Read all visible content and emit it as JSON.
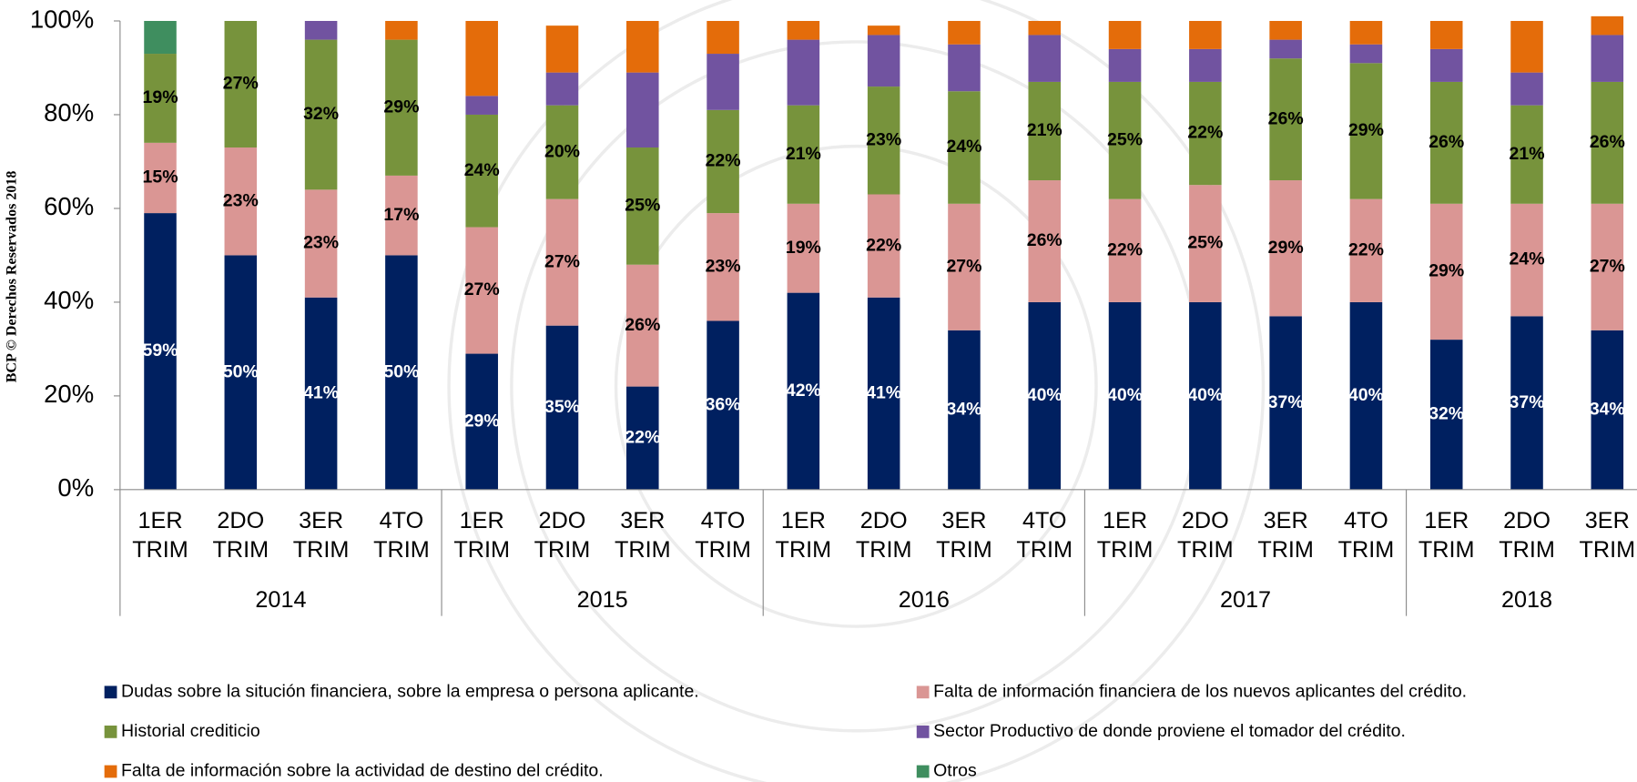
{
  "chart_data": {
    "type": "stacked_bar",
    "side_note": "BCP © Derechos Reservados 2018",
    "groups": [
      {
        "name": "2014",
        "categories": [
          [
            "1ER",
            "TRIM"
          ],
          [
            "2DO",
            "TRIM"
          ],
          [
            "3ER",
            "TRIM"
          ],
          [
            "4TO",
            "TRIM"
          ]
        ]
      },
      {
        "name": "2015",
        "categories": [
          [
            "1ER",
            "TRIM"
          ],
          [
            "2DO",
            "TRIM"
          ],
          [
            "3ER",
            "TRIM"
          ],
          [
            "4TO",
            "TRIM"
          ]
        ]
      },
      {
        "name": "2016",
        "categories": [
          [
            "1ER",
            "TRIM"
          ],
          [
            "2DO",
            "TRIM"
          ],
          [
            "3ER",
            "TRIM"
          ],
          [
            "4TO",
            "TRIM"
          ]
        ]
      },
      {
        "name": "2017",
        "categories": [
          [
            "1ER",
            "TRIM"
          ],
          [
            "2DO",
            "TRIM"
          ],
          [
            "3ER",
            "TRIM"
          ],
          [
            "4TO",
            "TRIM"
          ]
        ]
      },
      {
        "name": "2018",
        "categories": [
          [
            "1ER",
            "TRIM"
          ],
          [
            "2DO",
            "TRIM"
          ],
          [
            "3ER",
            "TRIM"
          ]
        ]
      }
    ],
    "series": [
      {
        "name": "Dudas sobre la situción financiera, sobre la empresa o persona aplicante.",
        "color": "#002060",
        "values": [
          59,
          50,
          41,
          50,
          29,
          35,
          22,
          36,
          42,
          41,
          34,
          40,
          40,
          40,
          37,
          40,
          32,
          37,
          34
        ],
        "value_labels": [
          "59%",
          "50%",
          "41%",
          "50%",
          "29%",
          "35%",
          "22%",
          "36%",
          "42%",
          "41%",
          "34%",
          "40%",
          "40%",
          "40%",
          "37%",
          "40%",
          "32%",
          "37%",
          "34%"
        ]
      },
      {
        "name": "Falta de información financiera de los nuevos aplicantes del crédito.",
        "color": "#da9694",
        "values": [
          15,
          23,
          23,
          17,
          27,
          27,
          26,
          23,
          19,
          22,
          27,
          26,
          22,
          25,
          29,
          22,
          29,
          24,
          27
        ],
        "value_labels": [
          "15%",
          "23%",
          "23%",
          "17%",
          "27%",
          "27%",
          "26%",
          "23%",
          "19%",
          "22%",
          "27%",
          "26%",
          "22%",
          "25%",
          "29%",
          "22%",
          "29%",
          "24%",
          "27%"
        ]
      },
      {
        "name": "Historial crediticio",
        "color": "#77933c",
        "values": [
          19,
          27,
          32,
          29,
          24,
          20,
          25,
          22,
          21,
          23,
          24,
          21,
          25,
          22,
          26,
          29,
          26,
          21,
          26
        ],
        "value_labels": [
          "19%",
          "27%",
          "32%",
          "29%",
          "24%",
          "20%",
          "25%",
          "22%",
          "21%",
          "23%",
          "24%",
          "21%",
          "25%",
          "22%",
          "26%",
          "29%",
          "26%",
          "21%",
          "26%"
        ]
      },
      {
        "name": "Sector Productivo de donde proviene el tomador del crédito.",
        "color": "#7153a0",
        "values": [
          0,
          0,
          4,
          0,
          4,
          7,
          16,
          12,
          14,
          11,
          10,
          10,
          7,
          7,
          4,
          4,
          7,
          7,
          10
        ]
      },
      {
        "name": "Falta de información sobre la actividad de destino del crédito.",
        "color": "#e46c0a",
        "values": [
          0,
          0,
          0,
          4,
          16,
          10,
          11,
          7,
          4,
          2,
          5,
          3,
          6,
          6,
          4,
          5,
          6,
          11,
          4
        ]
      },
      {
        "name": "Otros",
        "color": "#3f8e5f",
        "values": [
          7,
          0,
          0,
          0,
          0,
          0,
          0,
          0,
          0,
          0,
          0,
          0,
          0,
          0,
          0,
          0,
          0,
          0,
          0
        ]
      }
    ],
    "ylim": [
      0,
      100
    ],
    "yticks": [
      {
        "value": 0,
        "label": "0%"
      },
      {
        "value": 20,
        "label": "20%"
      },
      {
        "value": 40,
        "label": "40%"
      },
      {
        "value": 60,
        "label": "60%"
      },
      {
        "value": 80,
        "label": "80%"
      },
      {
        "value": 100,
        "label": "100%"
      }
    ]
  }
}
